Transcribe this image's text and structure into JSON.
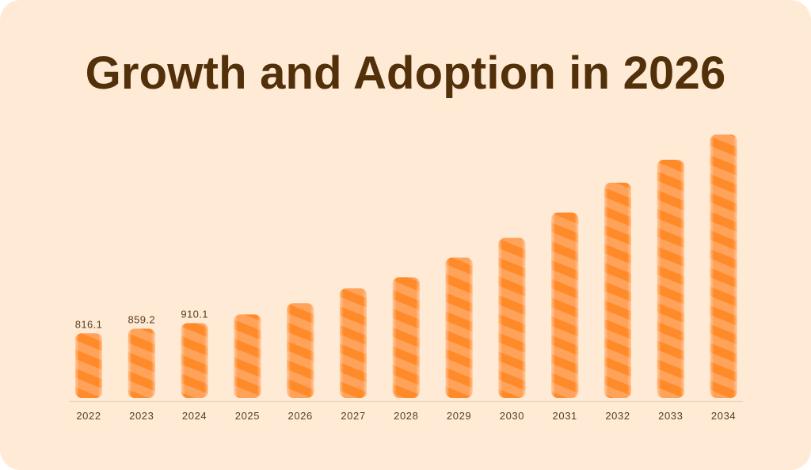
{
  "chart_data": {
    "type": "bar",
    "title": "Growth and Adoption in 2026",
    "xlabel": "",
    "ylabel": "",
    "categories": [
      "2022",
      "2023",
      "2024",
      "2025",
      "2026",
      "2027",
      "2028",
      "2029",
      "2030",
      "2031",
      "2032",
      "2033",
      "2034"
    ],
    "values": [
      816.1,
      859.2,
      910.1,
      990,
      1092,
      1229,
      1331,
      1512,
      1693,
      1925,
      2200,
      2410,
      2642
    ],
    "data_labels": [
      "816.1",
      "859.2",
      "910.1",
      "",
      "",
      "",
      "",
      "",
      "",
      "",
      "",
      "",
      ""
    ],
    "ylim": [
      222,
      2700
    ],
    "grid": false,
    "legend": "none",
    "colors": {
      "background": "#ffead6",
      "title": "#52300a",
      "bar_main": "#ff8a2a",
      "bar_stripe": "#ffa25a",
      "label": "#5a3d1e",
      "baseline": "#ecd6bd"
    }
  }
}
